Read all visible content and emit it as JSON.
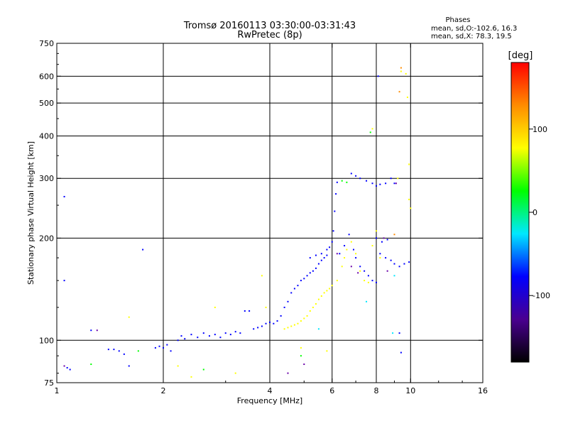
{
  "chart_data": {
    "type": "scatter",
    "title": "Tromsø 20160113 03:30:00-03:31:43",
    "subtitle": "RwPretec (8p)",
    "stats": {
      "heading": "Phases",
      "line_o": "mean, sd,O:-102.6, 16.3",
      "line_x": "mean, sd,X:  78.3, 19.5"
    },
    "xlabel": "Frequency [MHz]",
    "ylabel": "Stationary phase Virtual Height [km]",
    "x_scale": "log",
    "y_scale": "log",
    "xlim": [
      1,
      16
    ],
    "ylim": [
      75,
      750
    ],
    "x_ticks": [
      1,
      2,
      4,
      6,
      8,
      10,
      16
    ],
    "x_tick_labels": [
      "1",
      "2",
      "4",
      "6",
      "8",
      "10",
      "16"
    ],
    "y_ticks": [
      75,
      100,
      200,
      300,
      400,
      500,
      600,
      750
    ],
    "y_tick_labels": [
      "75",
      "100",
      "200",
      "300",
      "400",
      "500",
      "600",
      "750"
    ],
    "x_gridlines": [
      2,
      4,
      6,
      8,
      10
    ],
    "y_gridlines": [
      100,
      200,
      300,
      400,
      500,
      600
    ],
    "grid": true,
    "colorbar": {
      "label": "[deg]",
      "range": [
        -180,
        180
      ],
      "ticks": [
        -100,
        0,
        100
      ],
      "tick_labels": [
        "-100",
        "0",
        "100"
      ],
      "colors": [
        "#000000",
        "#4a0090",
        "#0000ff",
        "#00e8ff",
        "#00ff00",
        "#ffff00",
        "#ff8c00",
        "#ff0000"
      ]
    },
    "series": [
      {
        "color": "#0000ff",
        "points": [
          [
            1.05,
            265
          ],
          [
            1.05,
            150
          ],
          [
            1.07,
            83
          ],
          [
            1.09,
            82
          ],
          [
            1.25,
            107
          ],
          [
            1.4,
            94
          ],
          [
            1.45,
            94
          ],
          [
            1.5,
            93
          ],
          [
            1.55,
            91
          ],
          [
            1.6,
            84
          ],
          [
            1.75,
            185
          ],
          [
            1.9,
            95
          ],
          [
            1.95,
            96
          ],
          [
            2.0,
            95
          ],
          [
            2.05,
            97
          ],
          [
            2.1,
            93
          ],
          [
            2.2,
            100
          ],
          [
            2.25,
            103
          ],
          [
            2.3,
            101
          ],
          [
            2.4,
            104
          ],
          [
            2.5,
            102
          ],
          [
            2.6,
            105
          ],
          [
            2.7,
            103
          ],
          [
            2.8,
            104
          ],
          [
            2.9,
            102
          ],
          [
            3.0,
            105
          ],
          [
            3.1,
            104
          ],
          [
            3.2,
            106
          ],
          [
            3.3,
            105
          ],
          [
            3.4,
            122
          ],
          [
            3.5,
            122
          ],
          [
            3.6,
            108
          ],
          [
            3.7,
            109
          ],
          [
            3.8,
            110
          ],
          [
            3.9,
            112
          ],
          [
            4.0,
            113
          ],
          [
            4.1,
            112
          ],
          [
            4.2,
            114
          ],
          [
            4.3,
            118
          ],
          [
            4.4,
            125
          ],
          [
            4.5,
            130
          ],
          [
            4.6,
            138
          ],
          [
            4.7,
            142
          ],
          [
            4.8,
            145
          ],
          [
            4.9,
            150
          ],
          [
            5.0,
            152
          ],
          [
            5.1,
            155
          ],
          [
            5.2,
            158
          ],
          [
            5.3,
            160
          ],
          [
            5.4,
            163
          ],
          [
            5.5,
            168
          ],
          [
            5.6,
            172
          ],
          [
            5.7,
            175
          ],
          [
            5.8,
            178
          ],
          [
            5.9,
            188
          ],
          [
            6.0,
            195
          ],
          [
            6.05,
            210
          ],
          [
            6.1,
            240
          ],
          [
            6.15,
            270
          ],
          [
            6.2,
            292
          ],
          [
            5.2,
            175
          ],
          [
            5.4,
            178
          ],
          [
            5.6,
            180
          ],
          [
            5.8,
            185
          ],
          [
            6.3,
            180
          ],
          [
            6.5,
            190
          ],
          [
            6.7,
            205
          ],
          [
            6.9,
            185
          ],
          [
            7.0,
            175
          ],
          [
            7.2,
            165
          ],
          [
            7.4,
            160
          ],
          [
            7.6,
            155
          ],
          [
            7.8,
            150
          ],
          [
            8.0,
            148
          ],
          [
            8.2,
            180
          ],
          [
            8.5,
            175
          ],
          [
            8.8,
            172
          ],
          [
            9.0,
            168
          ],
          [
            9.3,
            165
          ],
          [
            9.6,
            168
          ],
          [
            9.9,
            170
          ],
          [
            6.8,
            310
          ],
          [
            7.0,
            305
          ],
          [
            7.2,
            300
          ],
          [
            7.5,
            295
          ],
          [
            7.8,
            290
          ],
          [
            8.0,
            285
          ],
          [
            8.2,
            288
          ],
          [
            8.5,
            290
          ],
          [
            8.8,
            300
          ],
          [
            9.0,
            290
          ],
          [
            8.0,
            200
          ],
          [
            8.3,
            195
          ],
          [
            8.6,
            198
          ],
          [
            8.1,
            600
          ],
          [
            9.3,
            105
          ],
          [
            9.4,
            92
          ]
        ]
      },
      {
        "color": "#ffff00",
        "points": [
          [
            4.4,
            108
          ],
          [
            4.5,
            109
          ],
          [
            4.6,
            110
          ],
          [
            4.7,
            111
          ],
          [
            4.8,
            112
          ],
          [
            4.9,
            114
          ],
          [
            5.0,
            116
          ],
          [
            5.1,
            118
          ],
          [
            5.2,
            122
          ],
          [
            5.3,
            125
          ],
          [
            5.4,
            128
          ],
          [
            5.5,
            132
          ],
          [
            5.6,
            135
          ],
          [
            5.7,
            138
          ],
          [
            5.8,
            140
          ],
          [
            5.9,
            142
          ],
          [
            6.0,
            145
          ],
          [
            6.2,
            150
          ],
          [
            6.4,
            165
          ],
          [
            6.5,
            175
          ],
          [
            6.6,
            185
          ],
          [
            6.8,
            195
          ],
          [
            7.0,
            180
          ],
          [
            7.2,
            160
          ],
          [
            7.4,
            150
          ],
          [
            7.6,
            148
          ],
          [
            7.8,
            190
          ],
          [
            8.0,
            210
          ],
          [
            8.2,
            175
          ],
          [
            9.4,
            620
          ],
          [
            9.7,
            610
          ],
          [
            9.8,
            520
          ],
          [
            9.9,
            330
          ],
          [
            9.9,
            260
          ],
          [
            10.0,
            245
          ],
          [
            9.2,
            300
          ],
          [
            7.8,
            420
          ],
          [
            3.9,
            125
          ],
          [
            3.8,
            155
          ],
          [
            5.8,
            93
          ],
          [
            4.9,
            95
          ],
          [
            1.6,
            117
          ],
          [
            2.2,
            84
          ],
          [
            2.4,
            78
          ],
          [
            3.2,
            80
          ],
          [
            2.8,
            125
          ]
        ]
      },
      {
        "color": "#00ff00",
        "points": [
          [
            6.4,
            295
          ],
          [
            6.6,
            292
          ],
          [
            7.7,
            410
          ],
          [
            1.7,
            93
          ],
          [
            1.25,
            85
          ],
          [
            4.9,
            90
          ],
          [
            2.6,
            82
          ]
        ]
      },
      {
        "color": "#00e8ff",
        "points": [
          [
            5.5,
            108
          ],
          [
            7.5,
            130
          ],
          [
            8.9,
            105
          ],
          [
            9.0,
            155
          ]
        ]
      },
      {
        "color": "#6a00a8",
        "points": [
          [
            1.3,
            107
          ],
          [
            4.5,
            80
          ],
          [
            5.0,
            85
          ],
          [
            6.2,
            180
          ],
          [
            6.8,
            165
          ],
          [
            7.1,
            158
          ],
          [
            8.4,
            200
          ],
          [
            8.6,
            160
          ],
          [
            9.1,
            290
          ],
          [
            1.05,
            84
          ]
        ]
      },
      {
        "color": "#ff8c00",
        "points": [
          [
            9.4,
            635
          ],
          [
            9.0,
            205
          ],
          [
            9.3,
            540
          ]
        ]
      }
    ]
  }
}
